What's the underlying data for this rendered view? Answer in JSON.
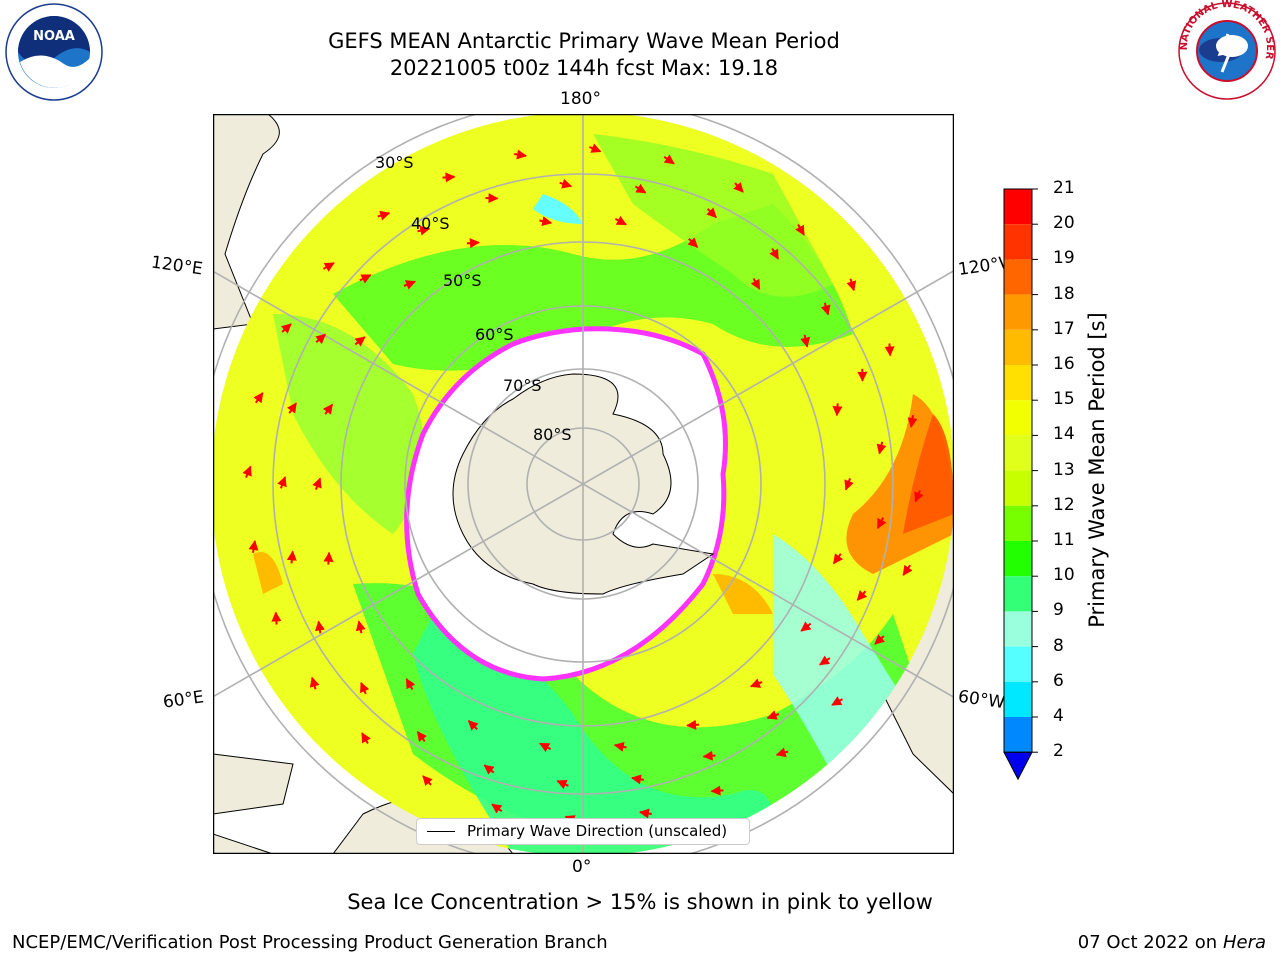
{
  "header": {
    "title_line1": "GEFS MEAN Antarctic Primary Wave Mean Period",
    "title_line2": "20221005 t00z 144h fcst   Max: 19.18"
  },
  "map": {
    "projection": "south-polar-stereographic",
    "longitude_labels": {
      "top": "180°",
      "bottom": "0°",
      "upper_left": "120°E",
      "lower_left": "60°E",
      "upper_right": "120°W",
      "lower_right": "60°W"
    },
    "latitude_labels": [
      "30°S",
      "40°S",
      "50°S",
      "60°S",
      "70°S",
      "80°S"
    ],
    "colors": {
      "land": "#efecdc",
      "sea_ice": "#ffffff",
      "ice_edge": "#ff33ff",
      "grid": "#b0b0b0",
      "arrow": "#ff0000"
    }
  },
  "legend": {
    "label": "Primary Wave Direction (unscaled)"
  },
  "colorbar": {
    "title": "Primary Wave Mean Period [s]",
    "ticks": [
      "21",
      "20",
      "19",
      "18",
      "17",
      "16",
      "15",
      "14",
      "13",
      "12",
      "11",
      "10",
      "9",
      "8",
      "6",
      "4",
      "2"
    ],
    "bins": [
      {
        "label": "20-21",
        "color": "#ff0000"
      },
      {
        "label": "19-20",
        "color": "#ff3300"
      },
      {
        "label": "18-19",
        "color": "#ff6600"
      },
      {
        "label": "17-18",
        "color": "#ff9900"
      },
      {
        "label": "16-17",
        "color": "#ffbb00"
      },
      {
        "label": "15-16",
        "color": "#ffe000"
      },
      {
        "label": "14-15",
        "color": "#f2ff00"
      },
      {
        "label": "13-14",
        "color": "#e0ff1a"
      },
      {
        "label": "12-13",
        "color": "#c8ff00"
      },
      {
        "label": "11-12",
        "color": "#77ff00"
      },
      {
        "label": "10-11",
        "color": "#22ff00"
      },
      {
        "label": "9-10",
        "color": "#33ff77"
      },
      {
        "label": "8-9",
        "color": "#99ffdd"
      },
      {
        "label": "6-8",
        "color": "#55ffff"
      },
      {
        "label": "4-6",
        "color": "#00e8ff"
      },
      {
        "label": "2-4",
        "color": "#0088ff"
      },
      {
        "label": "<2",
        "color": "#0000ee"
      }
    ]
  },
  "footer": {
    "note": "Sea Ice Concentration > 15% is shown in pink to yellow",
    "credit": "NCEP/EMC/Verification Post Processing Product Generation Branch",
    "date": "07 Oct 2022 on",
    "host": "Hera"
  },
  "logos": {
    "left": "NOAA",
    "right": "NATIONAL WEATHER SERVICE"
  }
}
